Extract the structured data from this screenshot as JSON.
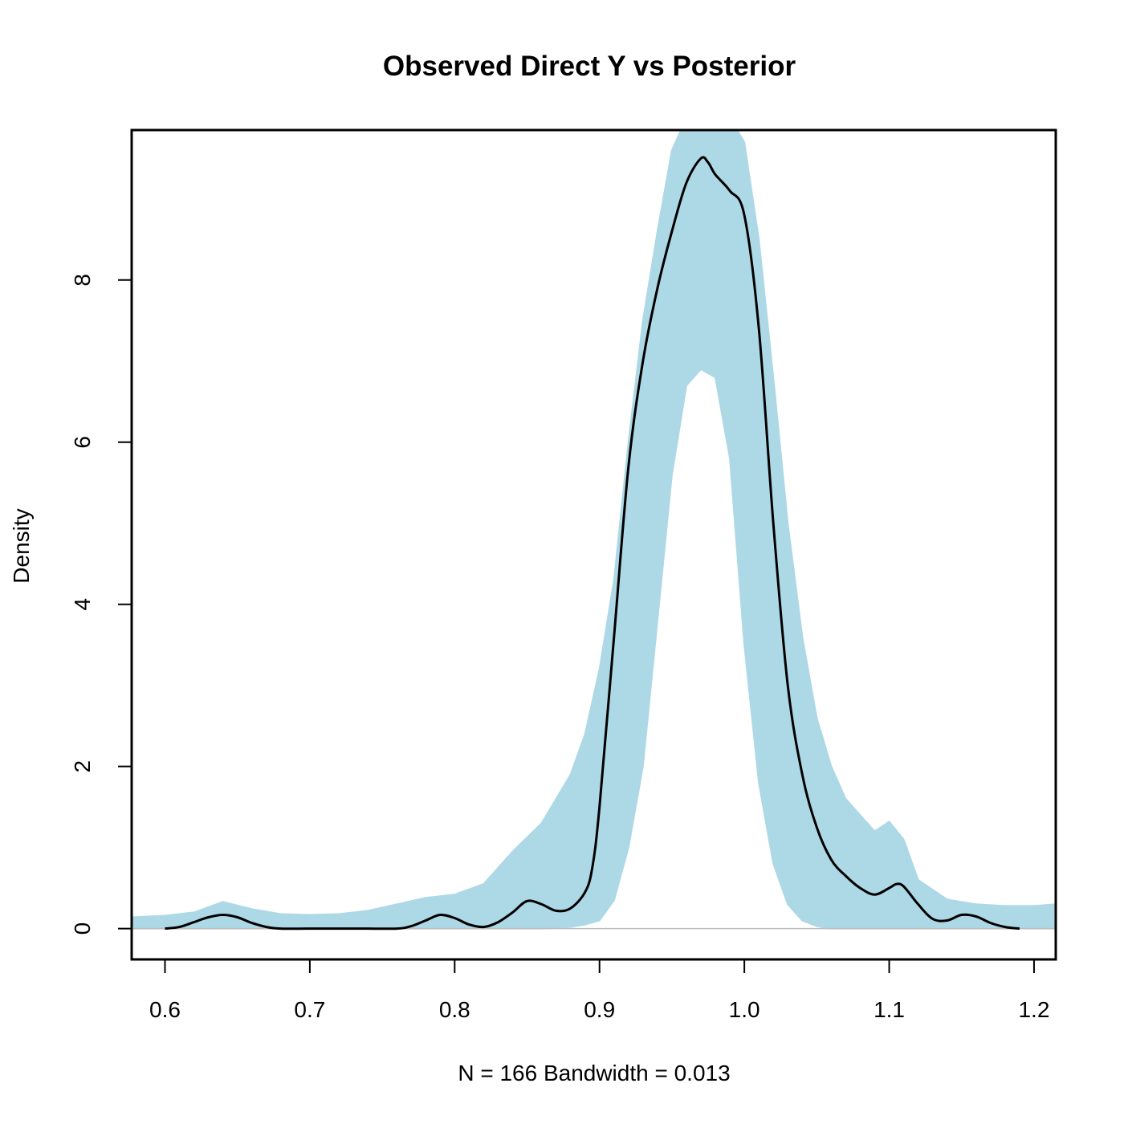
{
  "chart_data": {
    "type": "line",
    "title": "Observed Direct Y vs Posterior",
    "xlabel": "N = 166   Bandwidth = 0.013",
    "ylabel": "Density",
    "xlim": [
      0.577,
      1.215
    ],
    "ylim": [
      -0.38,
      9.85
    ],
    "x_ticks": [
      0.6,
      0.7,
      0.8,
      0.9,
      1.0,
      1.1,
      1.2
    ],
    "x_tick_labels": [
      "0.6",
      "0.7",
      "0.8",
      "0.9",
      "1.0",
      "1.1",
      "1.2"
    ],
    "y_ticks": [
      0,
      2,
      4,
      6,
      8
    ],
    "y_tick_labels": [
      "0",
      "2",
      "4",
      "6",
      "8"
    ],
    "grid": false,
    "colors": {
      "posterior": "#add8e6",
      "observed": "#000000",
      "zero_line": "#bebebe"
    },
    "observed_series": {
      "x": [
        0.6,
        0.61,
        0.62,
        0.63,
        0.64,
        0.65,
        0.66,
        0.67,
        0.68,
        0.7,
        0.72,
        0.74,
        0.76,
        0.77,
        0.78,
        0.79,
        0.8,
        0.81,
        0.82,
        0.83,
        0.84,
        0.85,
        0.86,
        0.87,
        0.88,
        0.89,
        0.895,
        0.9,
        0.91,
        0.92,
        0.93,
        0.94,
        0.95,
        0.96,
        0.97,
        0.975,
        0.98,
        0.99,
        1.0,
        1.01,
        1.02,
        1.03,
        1.04,
        1.05,
        1.06,
        1.07,
        1.08,
        1.09,
        1.1,
        1.105,
        1.11,
        1.12,
        1.13,
        1.14,
        1.15,
        1.16,
        1.17,
        1.18,
        1.19
      ],
      "y": [
        0.0,
        0.02,
        0.08,
        0.14,
        0.17,
        0.14,
        0.07,
        0.02,
        0.0,
        0.0,
        0.0,
        0.0,
        0.0,
        0.03,
        0.1,
        0.17,
        0.13,
        0.05,
        0.02,
        0.08,
        0.2,
        0.34,
        0.3,
        0.22,
        0.25,
        0.45,
        0.75,
        1.5,
        3.6,
        5.7,
        7.0,
        7.9,
        8.6,
        9.2,
        9.5,
        9.45,
        9.3,
        9.1,
        8.8,
        7.4,
        5.0,
        3.0,
        1.9,
        1.25,
        0.85,
        0.65,
        0.5,
        0.42,
        0.5,
        0.55,
        0.52,
        0.3,
        0.12,
        0.1,
        0.17,
        0.15,
        0.07,
        0.02,
        0.0
      ]
    },
    "posterior_band": {
      "x": [
        0.577,
        0.6,
        0.62,
        0.64,
        0.66,
        0.68,
        0.7,
        0.72,
        0.74,
        0.76,
        0.78,
        0.8,
        0.82,
        0.84,
        0.86,
        0.87,
        0.88,
        0.89,
        0.9,
        0.91,
        0.92,
        0.93,
        0.94,
        0.95,
        0.96,
        0.97,
        0.98,
        0.99,
        1.0,
        1.01,
        1.02,
        1.03,
        1.04,
        1.05,
        1.06,
        1.07,
        1.08,
        1.09,
        1.1,
        1.11,
        1.12,
        1.14,
        1.16,
        1.18,
        1.2,
        1.215
      ],
      "upper": [
        0.14,
        0.16,
        0.2,
        0.33,
        0.24,
        0.18,
        0.17,
        0.18,
        0.22,
        0.3,
        0.38,
        0.42,
        0.55,
        0.95,
        1.3,
        1.6,
        1.9,
        2.4,
        3.2,
        4.3,
        6.0,
        7.5,
        8.6,
        9.6,
        10.0,
        10.0,
        10.0,
        10.0,
        9.7,
        8.5,
        6.8,
        5.0,
        3.6,
        2.6,
        2.0,
        1.6,
        1.4,
        1.2,
        1.32,
        1.1,
        0.6,
        0.36,
        0.3,
        0.28,
        0.28,
        0.3
      ],
      "lower": [
        0.0,
        0.0,
        0.0,
        0.0,
        0.0,
        0.0,
        0.0,
        0.0,
        0.0,
        0.0,
        0.0,
        0.0,
        0.0,
        0.0,
        0.0,
        0.01,
        0.02,
        0.05,
        0.1,
        0.35,
        1.0,
        2.0,
        3.8,
        5.6,
        6.7,
        6.9,
        6.8,
        5.8,
        3.5,
        1.8,
        0.8,
        0.3,
        0.1,
        0.03,
        0.0,
        0.0,
        0.0,
        0.0,
        0.0,
        0.0,
        0.0,
        0.0,
        0.0,
        0.0,
        0.0,
        0.0
      ]
    }
  }
}
